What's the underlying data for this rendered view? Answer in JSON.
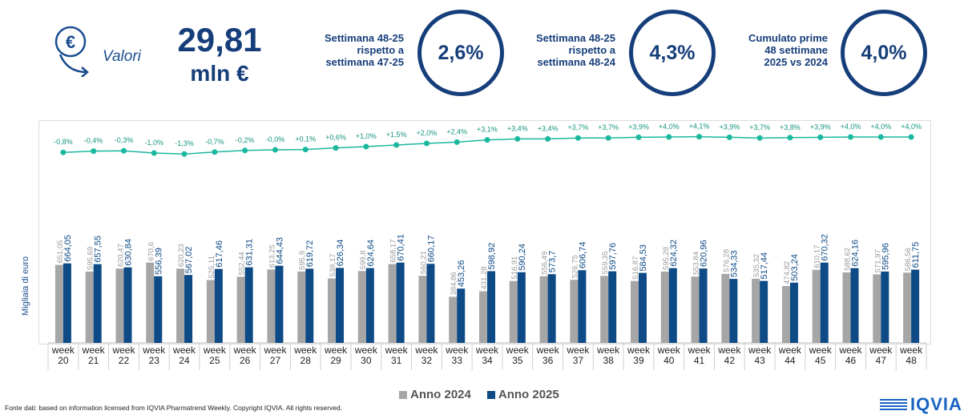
{
  "header": {
    "icon": "euro-down-arrow-icon",
    "valori_label": "Valori",
    "value": "29,81",
    "unit": "mln €",
    "kpis": [
      {
        "label_lines": [
          "Settimana 48-25",
          "rispetto a",
          "settimana 47-25"
        ],
        "value": "2,6%"
      },
      {
        "label_lines": [
          "Settimana 48-25",
          "rispetto a",
          "settimana 48-24"
        ],
        "value": "4,3%"
      },
      {
        "label_lines": [
          "Cumulato prime",
          "48 settimane",
          "2025 vs 2024"
        ],
        "value": "4,0%"
      }
    ]
  },
  "chart_data": {
    "type": "bar",
    "ylabel": "Migliaia di euro",
    "categories": [
      "week\n20",
      "week\n21",
      "week\n22",
      "week\n23",
      "week\n24",
      "week\n25",
      "week\n26",
      "week\n27",
      "week\n28",
      "week\n29",
      "week\n30",
      "week\n31",
      "week\n32",
      "week\n33",
      "week\n34",
      "week\n35",
      "week\n36",
      "week\n37",
      "week\n38",
      "week\n39",
      "week\n40",
      "week\n41",
      "week\n42",
      "week\n43",
      "week\n44",
      "week\n45",
      "week\n46",
      "week\n47",
      "week\n48"
    ],
    "series": [
      {
        "name": "Anno 2024",
        "color": "#a6a6a6",
        "values": [
          651.05,
          595.69,
          620.47,
          670.6,
          620.23,
          525.11,
          552.44,
          613.25,
          595.9,
          538.17,
          599.8,
          658.17,
          560.21,
          384.86,
          431.28,
          516.91,
          556.49,
          526.75,
          559.35,
          516.87,
          595.28,
          553.84,
          576.28,
          535.32,
          474.82,
          610.17,
          588.62,
          571.97,
          586.56
        ],
        "labels": [
          "651,05",
          "595,69",
          "620,47",
          "670,6",
          "620,23",
          "525,11",
          "552,44",
          "613,25",
          "595,9",
          "538,17",
          "599,8",
          "658,17",
          "560,21",
          "384,86",
          "431,28",
          "516,91",
          "556,49",
          "526,75",
          "559,35",
          "516,87",
          "595,28",
          "553,84",
          "576,28",
          "535,32",
          "474,82",
          "610,17",
          "588,62",
          "571,97",
          "586,56"
        ]
      },
      {
        "name": "Anno 2025",
        "color": "#0d4a86",
        "values": [
          664.05,
          657.55,
          630.84,
          556.39,
          567.02,
          617.46,
          631.31,
          644.43,
          619.72,
          626.34,
          624.64,
          670.41,
          660.17,
          453.26,
          598.92,
          590.24,
          573.7,
          606.74,
          597.76,
          584.53,
          624.32,
          620.96,
          534.33,
          517.44,
          503.24,
          670.32,
          624.16,
          595.96,
          611.75
        ],
        "labels": [
          "664,05",
          "657,55",
          "630,84",
          "556,39",
          "567,02",
          "617,46",
          "631,31",
          "644,43",
          "619,72",
          "626,34",
          "624,64",
          "670,41",
          "660,17",
          "453,26",
          "598,92",
          "590,24",
          "573,7",
          "606,74",
          "597,76",
          "584,53",
          "624,32",
          "620,96",
          "534,33",
          "517,44",
          "503,24",
          "670,32",
          "624,16",
          "595,96",
          "611,75"
        ]
      }
    ],
    "cumulative_growth": {
      "color": "#1ab89f",
      "values": [
        -0.8,
        -0.4,
        -0.3,
        -1.0,
        -1.3,
        -0.7,
        -0.2,
        0.0,
        0.1,
        0.6,
        1.0,
        1.5,
        2.0,
        2.4,
        3.1,
        3.4,
        3.4,
        3.7,
        3.7,
        3.9,
        4.0,
        4.1,
        3.9,
        3.7,
        3.8,
        3.9,
        4.0,
        4.0,
        4.0
      ],
      "labels": [
        "-0,8%",
        "-0,4%",
        "-0,3%",
        "-1,0%",
        "-1,3%",
        "-0,7%",
        "-0,2%",
        "-0,0%",
        "+0,1%",
        "+0,6%",
        "+1,0%",
        "+1,5%",
        "+2,0%",
        "+2,4%",
        "+3,1%",
        "+3,4%",
        "+3,4%",
        "+3,7%",
        "+3,7%",
        "+3,9%",
        "+4,0%",
        "+4,1%",
        "+3,9%",
        "+3,7%",
        "+3,8%",
        "+3,9%",
        "+4,0%",
        "+4,0%",
        "+4,0%"
      ]
    },
    "legend": [
      "Anno 2024",
      "Anno 2025"
    ],
    "legend_placement": "bottom-center"
  },
  "footer": {
    "source": "Fonte dati: based on information licensed from IQVIA Pharmatrend Weekly. Copyright IQVIA. All rights reserved.",
    "logo_text": "IQVIA",
    "logo_icon": "iqvia-logo-icon"
  }
}
